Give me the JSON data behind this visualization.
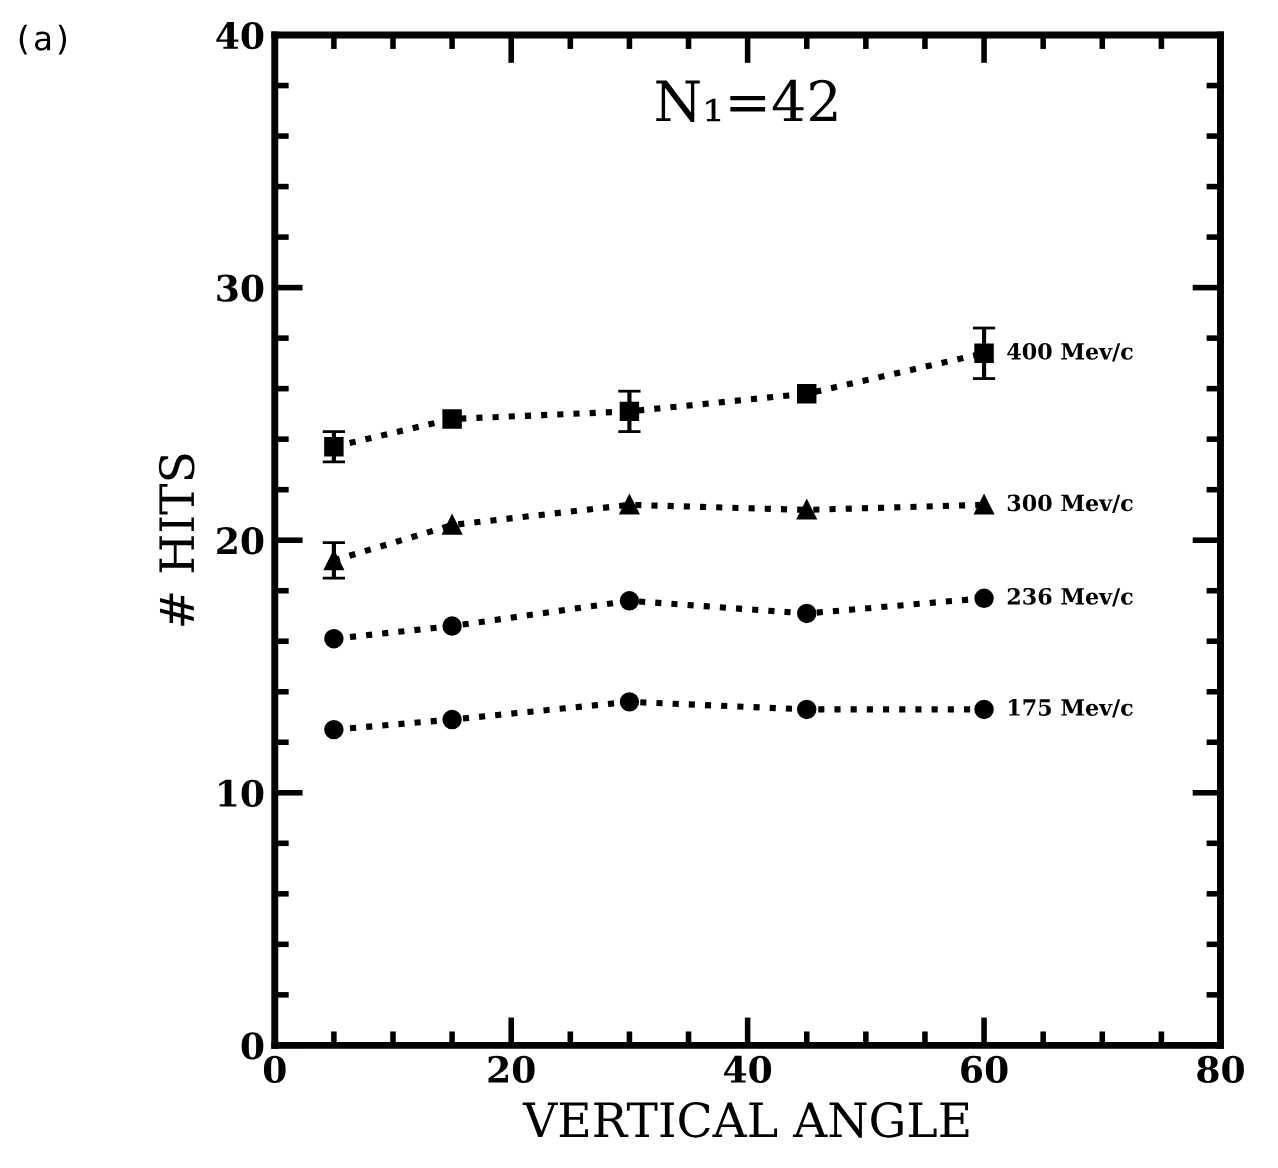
{
  "chart_data": {
    "type": "line",
    "title": "N₁=42",
    "xlabel": "VERTICAL ANGLE",
    "ylabel": "# HITS",
    "annotations": [
      "(a)"
    ],
    "x": [
      5,
      15,
      30,
      45,
      60
    ],
    "xlim": [
      0,
      80
    ],
    "xticks": [
      0,
      20,
      40,
      60,
      80
    ],
    "ylim": [
      0,
      40
    ],
    "yticks": [
      0,
      10,
      20,
      30,
      40
    ],
    "grid": false,
    "legend": false,
    "line_style": "dotted",
    "series": [
      {
        "name": "400 Mev/c",
        "color": "#000000",
        "marker": "square",
        "values": [
          23.7,
          24.8,
          25.1,
          25.8,
          27.4
        ],
        "errors": [
          0.6,
          null,
          0.8,
          null,
          1.0
        ]
      },
      {
        "name": "300 Mev/c",
        "color": "#000000",
        "marker": "triangle",
        "values": [
          19.2,
          20.6,
          21.4,
          21.2,
          21.4
        ],
        "errors": [
          0.7,
          null,
          null,
          null,
          null
        ]
      },
      {
        "name": "236 Mev/c",
        "color": "#000000",
        "marker": "circle",
        "values": [
          16.1,
          16.6,
          17.6,
          17.1,
          17.7
        ]
      },
      {
        "name": "175 Mev/c",
        "color": "#000000",
        "marker": "circle",
        "values": [
          12.5,
          12.9,
          13.6,
          13.3,
          13.3
        ]
      }
    ]
  }
}
